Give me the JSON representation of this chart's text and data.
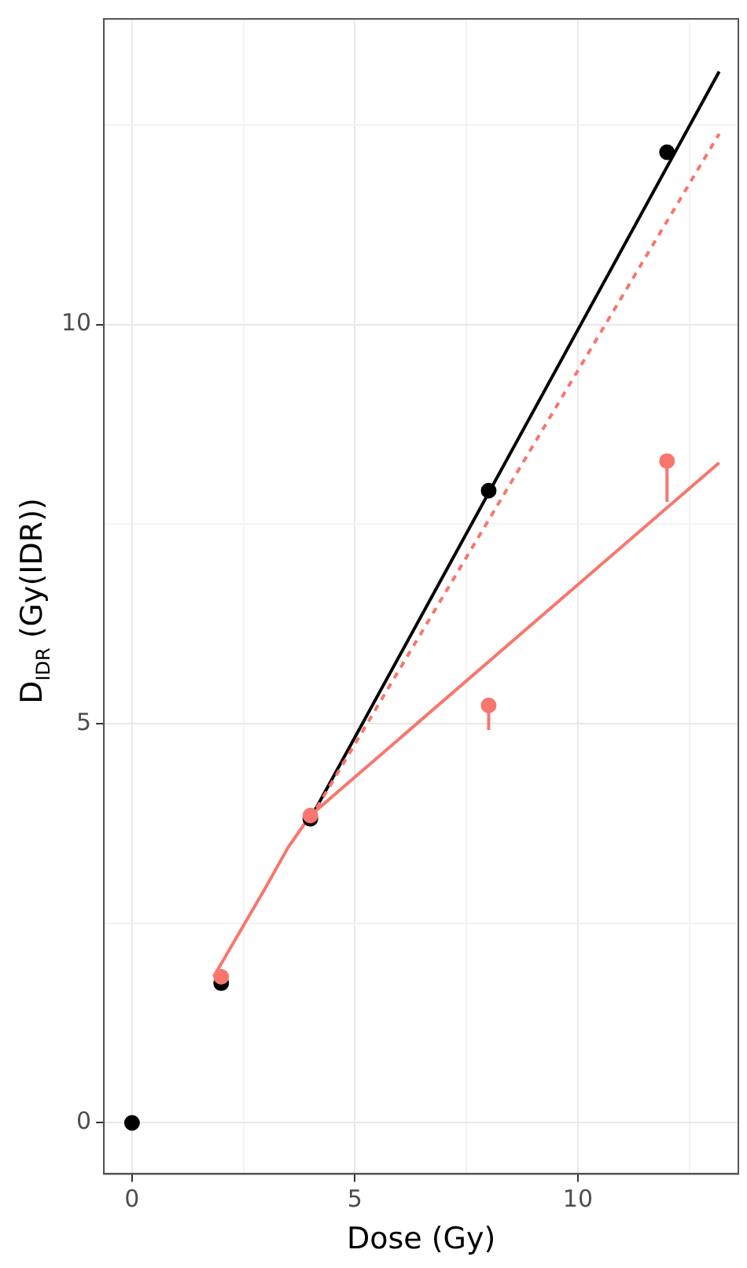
{
  "chart_data": {
    "type": "scatter",
    "ylabel": "D$_{IDR}$ (Gy(IDR))",
    "xlabel": "Dose (Gy)",
    "xlim": [
      -0.63,
      13.6
    ],
    "ylim": [
      -0.64,
      13.83
    ],
    "xticks": [
      0,
      {
        "value": 2.5,
        "label": null
      },
      5,
      {
        "value": 7.5,
        "label": null
      },
      10,
      {
        "value": 12.5,
        "label": null
      }
    ],
    "yticks": [
      0,
      {
        "value": 2.5,
        "label": null
      },
      5,
      {
        "value": 7.5,
        "label": null
      },
      10,
      {
        "value": 12.5,
        "label": null
      }
    ],
    "grid": true,
    "legend": false,
    "series": [
      {
        "type": "line",
        "color": "#000000",
        "x": [
          4,
          13.17
        ],
        "values": [
          3.81,
          13.17
        ],
        "marker": "none",
        "line_style": "solid"
      },
      {
        "type": "line",
        "color": "#f8766d",
        "x": [
          4,
          13.17
        ],
        "values": [
          3.81,
          12.39
        ],
        "marker": "none",
        "line_style": "dashed"
      },
      {
        "type": "line",
        "color": "#f8766d",
        "x": [
          1.83,
          3,
          3.5,
          4,
          13.17
        ],
        "values": [
          1.83,
          2.95,
          3.45,
          3.85,
          8.27
        ],
        "marker": "none",
        "line_style": "solid"
      },
      {
        "type": "scatter",
        "color": "#000000",
        "x": [
          0,
          2,
          4,
          8,
          12
        ],
        "values": [
          0,
          1.75,
          3.81,
          7.92,
          12.16
        ],
        "marker": "circle"
      },
      {
        "type": "scatter",
        "color": "#f8766d",
        "x": [
          2,
          4,
          8,
          12
        ],
        "values": [
          1.83,
          3.85,
          5.23,
          8.29
        ],
        "marker": "circle",
        "errors": [
          null,
          null,
          [
            4.92,
            5.23
          ],
          [
            7.78,
            8.29
          ]
        ]
      }
    ]
  }
}
